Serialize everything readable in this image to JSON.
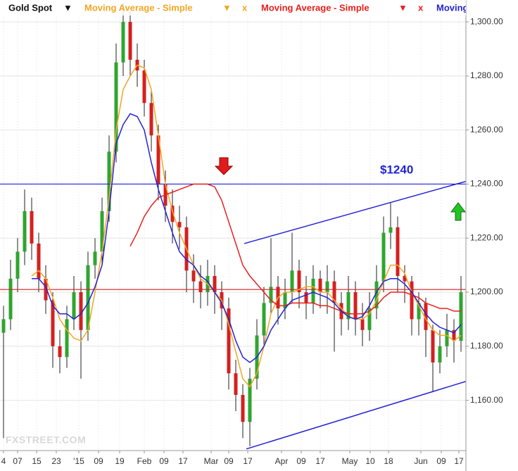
{
  "chart_data": {
    "type": "candlestick",
    "name": "Gold Spot",
    "open": [
      1185,
      1190,
      1205,
      1215,
      1230,
      1218,
      1205,
      1197,
      1180,
      1176,
      1190,
      1200,
      1186,
      1210,
      1215,
      1230,
      1252,
      1285,
      1300,
      1286,
      1282,
      1270,
      1258,
      1240,
      1232,
      1226,
      1224,
      1208,
      1204,
      1200,
      1206,
      1200,
      1194,
      1170,
      1162,
      1152,
      1168,
      1184,
      1196,
      1202,
      1194,
      1200,
      1208,
      1200,
      1196,
      1205,
      1200,
      1204,
      1196,
      1190,
      1200,
      1190,
      1186,
      1194,
      1204,
      1222,
      1224,
      1206,
      1204,
      1190,
      1196,
      1186,
      1174,
      1180,
      1186,
      1182
    ],
    "high": [
      1195,
      1212,
      1220,
      1238,
      1235,
      1222,
      1210,
      1200,
      1186,
      1195,
      1206,
      1204,
      1215,
      1220,
      1235,
      1258,
      1292,
      1307,
      1304,
      1292,
      1286,
      1275,
      1262,
      1245,
      1238,
      1232,
      1228,
      1214,
      1210,
      1212,
      1210,
      1204,
      1198,
      1175,
      1166,
      1172,
      1190,
      1202,
      1220,
      1206,
      1205,
      1222,
      1212,
      1206,
      1210,
      1208,
      1210,
      1208,
      1200,
      1206,
      1204,
      1196,
      1200,
      1210,
      1228,
      1233,
      1228,
      1210,
      1206,
      1200,
      1198,
      1188,
      1186,
      1192,
      1190,
      1206
    ],
    "low": [
      1146,
      1186,
      1200,
      1210,
      1212,
      1200,
      1192,
      1172,
      1170,
      1172,
      1186,
      1168,
      1182,
      1205,
      1210,
      1226,
      1248,
      1280,
      1280,
      1276,
      1265,
      1252,
      1234,
      1226,
      1218,
      1216,
      1200,
      1196,
      1194,
      1195,
      1192,
      1186,
      1164,
      1156,
      1146,
      1143,
      1164,
      1180,
      1192,
      1188,
      1190,
      1196,
      1194,
      1190,
      1192,
      1194,
      1192,
      1178,
      1184,
      1186,
      1184,
      1180,
      1182,
      1190,
      1200,
      1216,
      1200,
      1196,
      1184,
      1184,
      1176,
      1163,
      1170,
      1176,
      1174,
      1178
    ],
    "close": [
      1190,
      1205,
      1215,
      1230,
      1218,
      1205,
      1197,
      1180,
      1176,
      1190,
      1200,
      1186,
      1210,
      1215,
      1230,
      1252,
      1285,
      1300,
      1286,
      1282,
      1270,
      1258,
      1240,
      1232,
      1226,
      1224,
      1208,
      1204,
      1200,
      1206,
      1200,
      1194,
      1170,
      1162,
      1152,
      1168,
      1184,
      1196,
      1202,
      1194,
      1200,
      1208,
      1200,
      1196,
      1205,
      1200,
      1204,
      1196,
      1190,
      1200,
      1190,
      1186,
      1194,
      1204,
      1222,
      1224,
      1206,
      1204,
      1190,
      1196,
      1186,
      1174,
      1180,
      1186,
      1182,
      1200
    ],
    "up_color": "#2fa52f",
    "down_color": "#d42020",
    "series": [
      {
        "name": "Moving Average - Simple",
        "color": "#f5a623",
        "values": [
          null,
          null,
          null,
          null,
          1206,
          1208,
          1205,
          1198,
          1190,
          1186,
          1183,
          1182,
          1186,
          1200,
          1215,
          1235,
          1260,
          1275,
          1280,
          1284,
          1283,
          1275,
          1258,
          1240,
          1230,
          1222,
          1216,
          1210,
          1205,
          1203,
          1200,
          1197,
          1188,
          1178,
          1168,
          1165,
          1170,
          1180,
          1192,
          1198,
          1200,
          1200,
          1201,
          1202,
          1202,
          1200,
          1200,
          1197,
          1194,
          1191,
          1190,
          1190,
          1192,
          1197,
          1204,
          1210,
          1210,
          1207,
          1200,
          1195,
          1190,
          1186,
          1184,
          1184,
          1182,
          1184
        ]
      },
      {
        "name": "Moving Average - Simple",
        "color": "#e8201c",
        "values": [
          null,
          null,
          null,
          null,
          null,
          null,
          null,
          null,
          null,
          null,
          null,
          null,
          null,
          null,
          null,
          null,
          null,
          null,
          1217,
          1222,
          1228,
          1232,
          1235,
          1236,
          1237,
          1238,
          1239,
          1240,
          1240,
          1240,
          1239,
          1234,
          1226,
          1218,
          1210,
          1206,
          1203,
          1200,
          1197,
          1195,
          1195,
          1196,
          1196,
          1196,
          1196,
          1195,
          1195,
          1194,
          1193,
          1192,
          1192,
          1192,
          1193,
          1195,
          1198,
          1200,
          1200,
          1200,
          1199,
          1198,
          1196,
          1195,
          1194,
          1194,
          1193,
          1193
        ]
      },
      {
        "name": "Moving Average - Simple",
        "color": "#2323d6",
        "values": [
          null,
          null,
          null,
          null,
          1205,
          1205,
          1202,
          1195,
          1192,
          1192,
          1190,
          1192,
          1196,
          1202,
          1210,
          1230,
          1255,
          1262,
          1266,
          1265,
          1260,
          1248,
          1238,
          1230,
          1222,
          1215,
          1212,
          1210,
          1206,
          1204,
          1200,
          1196,
          1190,
          1182,
          1176,
          1174,
          1176,
          1180,
          1186,
          1190,
          1194,
          1197,
          1198,
          1199,
          1200,
          1199,
          1198,
          1196,
          1193,
          1191,
          1190,
          1191,
          1195,
          1200,
          1204,
          1205,
          1205,
          1203,
          1200,
          1196,
          1192,
          1189,
          1187,
          1186,
          1185,
          1188
        ]
      }
    ],
    "hlines": [
      {
        "value": 1240,
        "color": "#2323d6"
      },
      {
        "value": 1201,
        "color": "#d42020"
      }
    ],
    "trendlines": [
      {
        "x": [
          34.2,
          65.7
        ],
        "y": [
          1218,
          1241
        ],
        "color": "#2323d6"
      },
      {
        "x": [
          34.5,
          65.7
        ],
        "y": [
          1142,
          1167
        ],
        "color": "#2323d6"
      }
    ],
    "annotation": "$1240",
    "watermark": "FXSTREET.COM",
    "xlim": [
      -0.5,
      65.7
    ],
    "ylim": [
      1141.4,
      1308.1
    ],
    "xticks": [
      {
        "value": 0,
        "label": "4"
      },
      {
        "value": 2,
        "label": "07"
      },
      {
        "value": 4.7,
        "label": "15"
      },
      {
        "value": 7.5,
        "label": "23"
      },
      {
        "value": 10.7,
        "label": "'15"
      },
      {
        "value": 13.5,
        "label": "09"
      },
      {
        "value": 16.5,
        "label": "19"
      },
      {
        "value": 20,
        "label": "Feb"
      },
      {
        "value": 22.8,
        "label": "09"
      },
      {
        "value": 25.5,
        "label": "17"
      },
      {
        "value": 29.5,
        "label": "Mar"
      },
      {
        "value": 32,
        "label": "09"
      },
      {
        "value": 34.7,
        "label": "17"
      },
      {
        "value": 39.5,
        "label": "Apr"
      },
      {
        "value": 42.3,
        "label": "09"
      },
      {
        "value": 45,
        "label": "17"
      },
      {
        "value": 49.2,
        "label": "May"
      },
      {
        "value": 52.1,
        "label": "10"
      },
      {
        "value": 54.7,
        "label": "18"
      },
      {
        "value": 59.3,
        "label": "Jun"
      },
      {
        "value": 62.2,
        "label": "09"
      },
      {
        "value": 64.7,
        "label": "17"
      }
    ],
    "yticks": [
      {
        "value": 1160,
        "label": "1,160.00"
      },
      {
        "value": 1180,
        "label": "1,180.00"
      },
      {
        "value": 1200,
        "label": "1,200.00"
      },
      {
        "value": 1220,
        "label": "1,220.00"
      },
      {
        "value": 1240,
        "label": "1,240.00"
      },
      {
        "value": 1260,
        "label": "1,260.00"
      },
      {
        "value": 1280,
        "label": "1,280.00"
      },
      {
        "value": 1300,
        "label": "1,300.00"
      }
    ],
    "grid": true
  }
}
